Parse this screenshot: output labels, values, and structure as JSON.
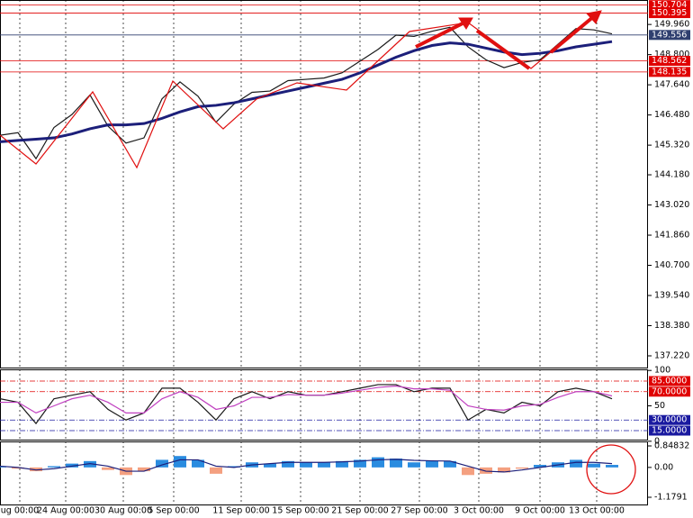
{
  "chart_data": [
    {
      "type": "line",
      "x": [
        0,
        1,
        2,
        3,
        4,
        5,
        6,
        7,
        8,
        9,
        10,
        11,
        12,
        13,
        14,
        15,
        16,
        17,
        18,
        19,
        20,
        21,
        22,
        23,
        24,
        25,
        26,
        27,
        28,
        29,
        30,
        31,
        32,
        33,
        34
      ],
      "xlim": [
        0,
        36
      ],
      "xticks": [
        {
          "value": 1.1,
          "label": "ug 00:00"
        },
        {
          "value": 3.65,
          "label": "24 Aug 00:00"
        },
        {
          "value": 6.85,
          "label": "30 Aug 00:00"
        },
        {
          "value": 9.65,
          "label": "5 Sep 00:00"
        },
        {
          "value": 13.4,
          "label": "11 Sep 00:00"
        },
        {
          "value": 16.7,
          "label": "15 Sep 00:00"
        },
        {
          "value": 20,
          "label": "21 Sep 00:00"
        },
        {
          "value": 23.3,
          "label": "27 Sep 00:00"
        },
        {
          "value": 26.6,
          "label": "3 Oct 00:00"
        },
        {
          "value": 30,
          "label": "9 Oct 00:00"
        },
        {
          "value": 33.15,
          "label": "13 Oct 00:00"
        }
      ],
      "ylim": [
        136.77,
        150.9
      ],
      "yticks": [
        {
          "value": 149.96,
          "label": "149.960"
        },
        {
          "value": 148.8,
          "label": "148.800"
        },
        {
          "value": 147.64,
          "label": "147.640"
        },
        {
          "value": 146.48,
          "label": "146.480"
        },
        {
          "value": 145.32,
          "label": "145.320"
        },
        {
          "value": 144.18,
          "label": "144.180"
        },
        {
          "value": 143.02,
          "label": "143.020"
        },
        {
          "value": 141.86,
          "label": "141.860"
        },
        {
          "value": 140.7,
          "label": "140.700"
        },
        {
          "value": 139.54,
          "label": "139.540"
        },
        {
          "value": 138.38,
          "label": "138.380"
        },
        {
          "value": 137.22,
          "label": "137.220"
        }
      ],
      "levels": [
        {
          "value": 150.704,
          "color": "#e00000"
        },
        {
          "value": 150.395,
          "color": "#e00000"
        },
        {
          "value": 149.556,
          "color": "#2f3f6f"
        },
        {
          "value": 148.562,
          "color": "#e00000"
        },
        {
          "value": 148.135,
          "color": "#e00000"
        }
      ],
      "grid": true,
      "series": [
        {
          "color": "#1a1a1a",
          "values": [
            145.7,
            145.8,
            144.8,
            146.0,
            146.5,
            147.25,
            146.05,
            145.4,
            145.6,
            147.1,
            147.75,
            147.2,
            146.2,
            146.9,
            147.35,
            147.4,
            147.8,
            147.85,
            147.9,
            148.1,
            148.55,
            149.0,
            149.55,
            149.5,
            149.7,
            149.85,
            149.1,
            148.6,
            148.3,
            148.5,
            148.6,
            149.2,
            149.8,
            149.75,
            149.6
          ]
        },
        {
          "color": "#1c1f7a",
          "values": [
            145.45,
            145.5,
            145.55,
            145.6,
            145.75,
            145.95,
            146.1,
            146.1,
            146.15,
            146.35,
            146.6,
            146.8,
            146.85,
            146.95,
            147.1,
            147.25,
            147.4,
            147.55,
            147.7,
            147.85,
            148.1,
            148.4,
            148.7,
            148.95,
            149.15,
            149.25,
            149.2,
            149.05,
            148.9,
            148.8,
            148.85,
            148.95,
            149.1,
            149.2,
            149.3
          ]
        }
      ]
    },
    {
      "type": "line",
      "ylim": [
        0,
        100
      ],
      "yticks": [
        100,
        50,
        0
      ],
      "levels": [
        {
          "value": 85,
          "label": "85.0000",
          "color": "#e00000"
        },
        {
          "value": 70,
          "label": "70.0000",
          "color": "#e00000"
        },
        {
          "value": 30,
          "label": "30.0000",
          "color": "#1a1aa0"
        },
        {
          "value": 15,
          "label": "15.0000",
          "color": "#1a1aa0"
        }
      ],
      "series": [
        {
          "color": "#1a1a1a",
          "values": [
            60,
            55,
            25,
            60,
            65,
            70,
            45,
            30,
            40,
            75,
            75,
            55,
            30,
            60,
            70,
            60,
            70,
            65,
            65,
            70,
            75,
            80,
            80,
            70,
            75,
            75,
            30,
            45,
            40,
            55,
            50,
            70,
            75,
            70,
            60
          ]
        },
        {
          "color": "#c040c0",
          "values": [
            55,
            55,
            40,
            50,
            60,
            65,
            55,
            40,
            40,
            60,
            70,
            62,
            45,
            50,
            62,
            62,
            66,
            65,
            65,
            68,
            72,
            76,
            78,
            74,
            74,
            72,
            50,
            45,
            44,
            50,
            52,
            62,
            70,
            70,
            64
          ]
        }
      ]
    },
    {
      "type": "macd",
      "ylim": [
        -1.1791,
        0.84832
      ],
      "yticks": [
        0.84832,
        {
          "value": 0,
          "label": "0.00"
        },
        -1.1791
      ],
      "up_color": "#2a8ce0",
      "down_color": "#f4a080",
      "histogram": [
        0.05,
        -0.05,
        -0.15,
        0.05,
        0.15,
        0.25,
        -0.1,
        -0.3,
        -0.15,
        0.3,
        0.45,
        0.3,
        -0.25,
        0.05,
        0.2,
        0.15,
        0.25,
        0.2,
        0.2,
        0.25,
        0.3,
        0.4,
        0.35,
        0.2,
        0.25,
        0.25,
        -0.3,
        -0.25,
        -0.2,
        -0.05,
        0.1,
        0.2,
        0.3,
        0.15,
        0.1
      ],
      "series": [
        {
          "color": "#1c1f7a",
          "values": [
            0.05,
            0,
            -0.1,
            -0.05,
            0.05,
            0.15,
            0.05,
            -0.15,
            -0.15,
            0.1,
            0.3,
            0.3,
            0.05,
            0,
            0.1,
            0.15,
            0.2,
            0.2,
            0.2,
            0.22,
            0.25,
            0.3,
            0.32,
            0.28,
            0.26,
            0.25,
            0.05,
            -0.15,
            -0.18,
            -0.1,
            0,
            0.1,
            0.2,
            0.2,
            0.15
          ]
        }
      ]
    }
  ]
}
